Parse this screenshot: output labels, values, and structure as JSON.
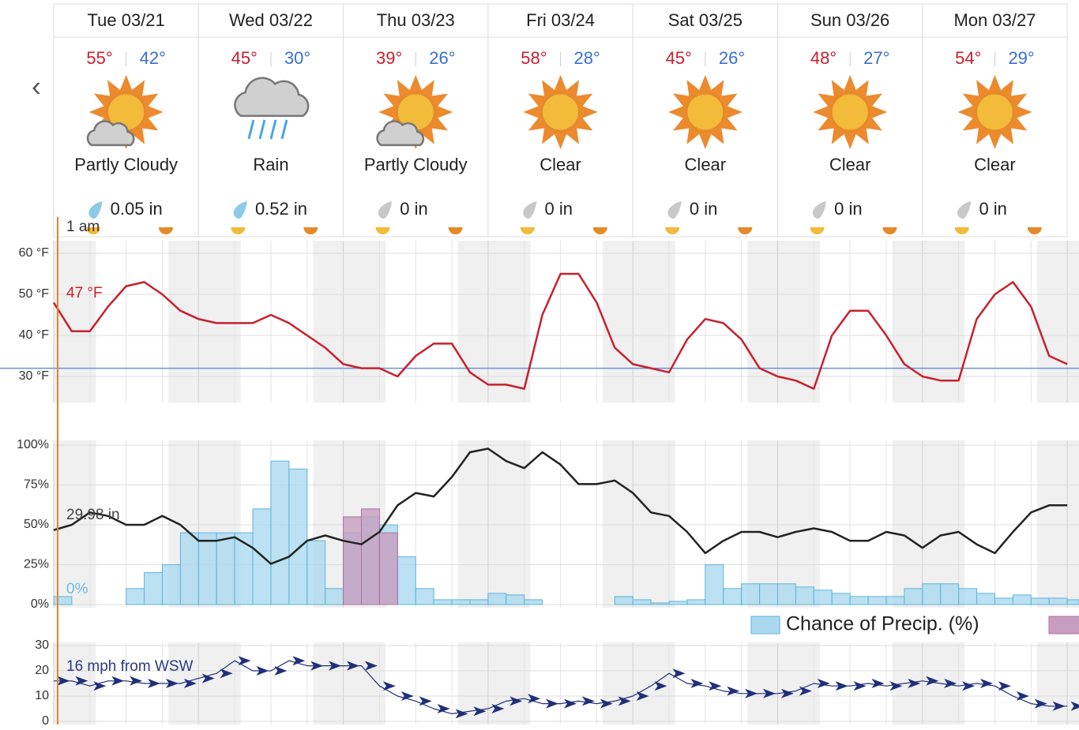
{
  "forecast": {
    "days": [
      {
        "day": "Tue 03/21",
        "high": "55°",
        "low": "42°",
        "condition": "Partly Cloudy",
        "precip": "0.05 in"
      },
      {
        "day": "Wed 03/22",
        "high": "45°",
        "low": "30°",
        "condition": "Rain",
        "precip": "0.52 in"
      },
      {
        "day": "Thu 03/23",
        "high": "39°",
        "low": "26°",
        "condition": "Partly Cloudy",
        "precip": "0 in"
      },
      {
        "day": "Fri 03/24",
        "high": "58°",
        "low": "28°",
        "condition": "Clear",
        "precip": "0 in"
      },
      {
        "day": "Sat 03/25",
        "high": "45°",
        "low": "26°",
        "condition": "Clear",
        "precip": "0 in"
      },
      {
        "day": "Sun 03/26",
        "high": "48°",
        "low": "27°",
        "condition": "Clear",
        "precip": "0 in"
      },
      {
        "day": "Mon 03/27",
        "high": "54°",
        "low": "29°",
        "condition": "Clear",
        "precip": "0 in"
      }
    ],
    "time_label": "1 am"
  },
  "chart_data": [
    {
      "type": "line",
      "current_label": "47 °F",
      "hline": 32,
      "x": [
        0,
        3,
        6,
        9,
        12,
        15,
        18,
        21,
        24,
        27,
        30,
        33,
        36,
        39,
        42,
        45,
        48,
        51,
        54,
        57,
        60,
        63,
        66,
        69,
        72,
        75,
        78,
        81,
        84,
        87,
        90,
        93,
        96,
        99,
        102,
        105,
        108,
        111,
        114,
        117,
        120,
        123,
        126,
        129,
        132,
        135,
        138,
        141,
        144,
        147,
        150,
        153,
        156,
        159,
        162,
        165,
        168
      ],
      "ylim": [
        25,
        63
      ],
      "yticks": [
        {
          "value": 30,
          "label": "30 °F"
        },
        {
          "value": 40,
          "label": "40 °F"
        },
        {
          "value": 50,
          "label": "50 °F"
        },
        {
          "value": 60,
          "label": "60 °F"
        }
      ],
      "series": [
        {
          "color": "#c8202e",
          "values": [
            48,
            41,
            41,
            47,
            52,
            53,
            50,
            46,
            44,
            43,
            43,
            43,
            45,
            43,
            40,
            37,
            33,
            32,
            32,
            30,
            35,
            38,
            38,
            31,
            28,
            28,
            27,
            45,
            55,
            55,
            48,
            37,
            33,
            32,
            31,
            39,
            44,
            43,
            39,
            32,
            30,
            29,
            27,
            40,
            46,
            46,
            40,
            33,
            30,
            29,
            29,
            44,
            50,
            53,
            47,
            35,
            33
          ]
        }
      ]
    },
    {
      "type": "bar",
      "current_label": "29.98 in",
      "zero_label": "0%",
      "x": [
        0,
        3,
        6,
        9,
        12,
        15,
        18,
        21,
        24,
        27,
        30,
        33,
        36,
        39,
        42,
        45,
        48,
        51,
        54,
        57,
        60,
        63,
        66,
        69,
        72,
        75,
        78,
        81,
        84,
        87,
        90,
        93,
        96,
        99,
        102,
        105,
        108,
        111,
        114,
        117,
        120,
        123,
        126,
        129,
        132,
        135,
        138,
        141,
        144,
        147,
        150,
        153,
        156,
        159,
        162,
        165,
        168
      ],
      "ylim": [
        0,
        100
      ],
      "y2lim": [
        29.5,
        30.4
      ],
      "yticks": [
        {
          "value": 0,
          "label": "0%"
        },
        {
          "value": 25,
          "label": "25%"
        },
        {
          "value": 50,
          "label": "50%"
        },
        {
          "value": 75,
          "label": "75%"
        },
        {
          "value": 100,
          "label": "100%"
        }
      ],
      "series": [
        {
          "name": "Chance of Precip. (%)",
          "color": "#aad9ef",
          "values": [
            5,
            0,
            0,
            0,
            10,
            20,
            25,
            45,
            45,
            45,
            45,
            60,
            90,
            85,
            40,
            10,
            45,
            55,
            50,
            30,
            10,
            3,
            3,
            3,
            7,
            6,
            3,
            0,
            0,
            0,
            0,
            5,
            3,
            1,
            2,
            3,
            25,
            10,
            13,
            13,
            13,
            11,
            9,
            7,
            5,
            5,
            5,
            10,
            13,
            13,
            10,
            7,
            4,
            6,
            4,
            4,
            3
          ]
        },
        {
          "color": "#c79ebf",
          "values": [
            null,
            null,
            null,
            null,
            null,
            null,
            null,
            null,
            null,
            null,
            null,
            null,
            null,
            null,
            null,
            null,
            55,
            60,
            45,
            null,
            null,
            null,
            null,
            null,
            null,
            null,
            null,
            null,
            null,
            null,
            null,
            null,
            null,
            null,
            null,
            null,
            null,
            null,
            null,
            null,
            null,
            null,
            null,
            null,
            null,
            null,
            null,
            null,
            null,
            null,
            null,
            null,
            null,
            null,
            null,
            null,
            null
          ]
        },
        {
          "color": "#222222",
          "axis": "y2",
          "values": [
            29.92,
            29.95,
            30.02,
            30.0,
            29.95,
            29.95,
            30.0,
            29.95,
            29.86,
            29.86,
            29.88,
            29.82,
            29.73,
            29.77,
            29.86,
            29.89,
            29.86,
            29.84,
            29.91,
            30.06,
            30.13,
            30.11,
            30.22,
            30.36,
            30.38,
            30.31,
            30.27,
            30.36,
            30.29,
            30.18,
            30.18,
            30.2,
            30.13,
            30.02,
            30.0,
            29.91,
            29.79,
            29.86,
            29.91,
            29.91,
            29.88,
            29.91,
            29.93,
            29.91,
            29.86,
            29.86,
            29.91,
            29.89,
            29.82,
            29.89,
            29.91,
            29.84,
            29.79,
            29.91,
            30.02,
            30.06,
            30.06
          ]
        }
      ]
    },
    {
      "type": "line",
      "current_label": "16 mph from WSW",
      "x": [
        0,
        3,
        6,
        9,
        12,
        15,
        18,
        21,
        24,
        27,
        30,
        33,
        36,
        39,
        42,
        45,
        48,
        51,
        54,
        57,
        60,
        63,
        66,
        69,
        72,
        75,
        78,
        81,
        84,
        87,
        90,
        93,
        96,
        99,
        102,
        105,
        108,
        111,
        114,
        117,
        120,
        123,
        126,
        129,
        132,
        135,
        138,
        141,
        144,
        147,
        150,
        153,
        156,
        159,
        162,
        165,
        168
      ],
      "ylim": [
        0,
        30
      ],
      "yticks": [
        0,
        10,
        20,
        30
      ],
      "series": [
        {
          "color": "#1f2f7a",
          "values": [
            16,
            16,
            14,
            16,
            16,
            15,
            15,
            15,
            17,
            19,
            24,
            20,
            20,
            24,
            22,
            22,
            22,
            22,
            14,
            10,
            8,
            5,
            3,
            4,
            5,
            8,
            9,
            7,
            7,
            8,
            7,
            8,
            10,
            14,
            19,
            15,
            14,
            12,
            11,
            11,
            11,
            12,
            15,
            14,
            14,
            15,
            14,
            15,
            16,
            15,
            14,
            15,
            14,
            10,
            7,
            6,
            6
          ]
        }
      ]
    }
  ]
}
